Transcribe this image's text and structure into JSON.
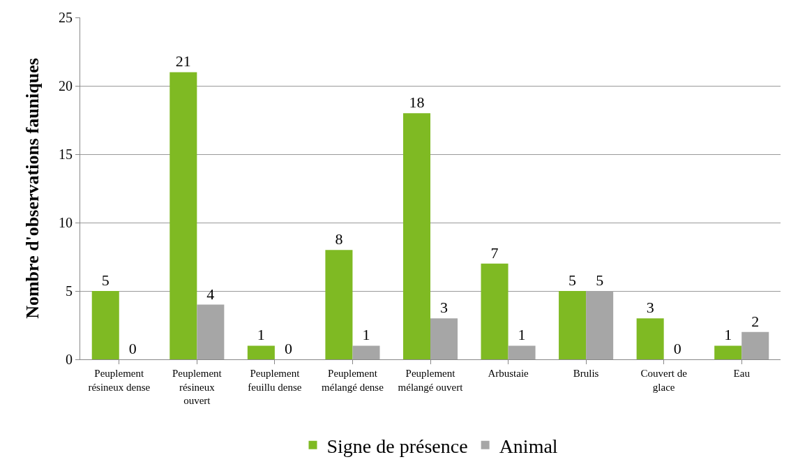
{
  "chart_data": {
    "type": "bar",
    "ylabel": "Nombre d'observations fauniques",
    "categories": [
      "Peuplement résineux dense",
      "Peuplement résineux ouvert",
      "Peuplement feuillu dense",
      "Peuplement mélangé dense",
      "Peuplement mélangé ouvert",
      "Arbustaie",
      "Brulis",
      "Couvert de glace",
      "Eau"
    ],
    "series": [
      {
        "name": "Signe de présence",
        "color": "#7fba23",
        "values": [
          5,
          21,
          1,
          8,
          18,
          7,
          5,
          3,
          1
        ]
      },
      {
        "name": "Animal",
        "color": "#a6a6a6",
        "values": [
          0,
          4,
          0,
          1,
          3,
          1,
          5,
          0,
          2
        ]
      }
    ],
    "ylim": [
      0,
      25
    ],
    "yticks": [
      0,
      5,
      10,
      15,
      20,
      25
    ],
    "grid": "y",
    "legend": "bottom",
    "data_labels": true
  }
}
